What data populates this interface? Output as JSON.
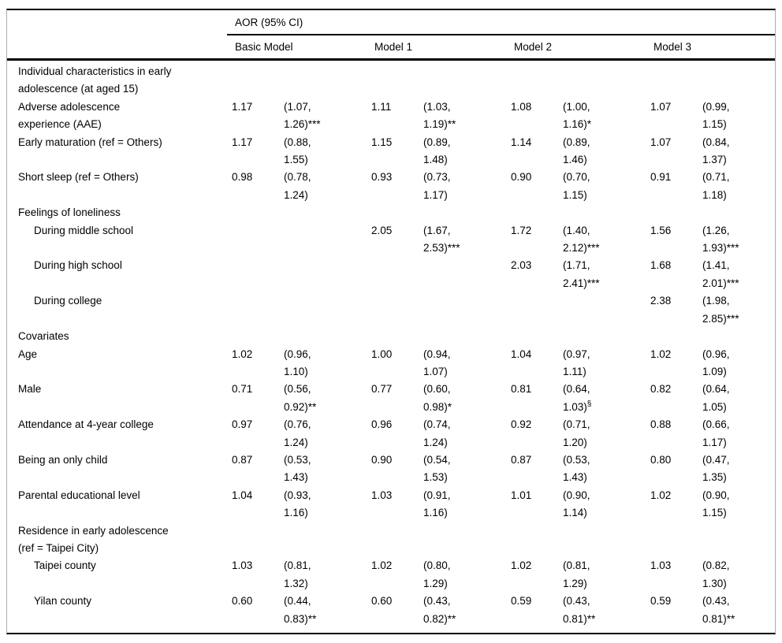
{
  "table": {
    "spanner_header": "AOR (95% CI)",
    "column_groups": [
      "Basic Model",
      "Model 1",
      "Model 2",
      "Model 3"
    ],
    "rows": [
      {
        "kind": "section",
        "indent": 0,
        "label_lines": [
          "Individual characteristics in early",
          "adolescence (at aged 15)"
        ]
      },
      {
        "kind": "data",
        "indent": 0,
        "label_lines": [
          "Adverse adolescence",
          "experience (AAE)"
        ],
        "cells": [
          {
            "aor": "1.17",
            "ci": "(1.07, 1.26)",
            "sig": "***"
          },
          {
            "aor": "1.11",
            "ci": "(1.03, 1.19)",
            "sig": "**"
          },
          {
            "aor": "1.08",
            "ci": "(1.00, 1.16)",
            "sig": "*"
          },
          {
            "aor": "1.07",
            "ci": "(0.99, 1.15)",
            "sig": ""
          }
        ]
      },
      {
        "kind": "data",
        "indent": 0,
        "label_lines": [
          "Early maturation (ref = Others)"
        ],
        "cells": [
          {
            "aor": "1.17",
            "ci": "(0.88, 1.55)",
            "sig": ""
          },
          {
            "aor": "1.15",
            "ci": "(0.89, 1.48)",
            "sig": ""
          },
          {
            "aor": "1.14",
            "ci": "(0.89, 1.46)",
            "sig": ""
          },
          {
            "aor": "1.07",
            "ci": "(0.84, 1.37)",
            "sig": ""
          }
        ]
      },
      {
        "kind": "data",
        "indent": 0,
        "label_lines": [
          "Short sleep (ref = Others)"
        ],
        "cells": [
          {
            "aor": "0.98",
            "ci": "(0.78, 1.24)",
            "sig": ""
          },
          {
            "aor": "0.93",
            "ci": "(0.73, 1.17)",
            "sig": ""
          },
          {
            "aor": "0.90",
            "ci": "(0.70, 1.15)",
            "sig": ""
          },
          {
            "aor": "0.91",
            "ci": "(0.71, 1.18)",
            "sig": ""
          }
        ]
      },
      {
        "kind": "section",
        "indent": 0,
        "label_lines": [
          "Feelings of loneliness"
        ]
      },
      {
        "kind": "data",
        "indent": 1,
        "label_lines": [
          "During middle school"
        ],
        "cells": [
          null,
          {
            "aor": "2.05",
            "ci": "(1.67, 2.53)",
            "sig": "***"
          },
          {
            "aor": "1.72",
            "ci": "(1.40, 2.12)",
            "sig": "***"
          },
          {
            "aor": "1.56",
            "ci": "(1.26, 1.93)",
            "sig": "***"
          }
        ]
      },
      {
        "kind": "data",
        "indent": 1,
        "label_lines": [
          "During high school"
        ],
        "cells": [
          null,
          null,
          {
            "aor": "2.03",
            "ci": "(1.71, 2.41)",
            "sig": "***"
          },
          {
            "aor": "1.68",
            "ci": "(1.41, 2.01)",
            "sig": "***"
          }
        ]
      },
      {
        "kind": "data",
        "indent": 1,
        "label_lines": [
          "During college"
        ],
        "cells": [
          null,
          null,
          null,
          {
            "aor": "2.38",
            "ci": "(1.98, 2.85)",
            "sig": "***"
          }
        ]
      },
      {
        "kind": "section",
        "indent": 0,
        "label_lines": [
          "Covariates"
        ]
      },
      {
        "kind": "data",
        "indent": 0,
        "label_lines": [
          "Age"
        ],
        "cells": [
          {
            "aor": "1.02",
            "ci": "(0.96, 1.10)",
            "sig": ""
          },
          {
            "aor": "1.00",
            "ci": "(0.94, 1.07)",
            "sig": ""
          },
          {
            "aor": "1.04",
            "ci": "(0.97, 1.11)",
            "sig": ""
          },
          {
            "aor": "1.02",
            "ci": "(0.96, 1.09)",
            "sig": ""
          }
        ]
      },
      {
        "kind": "data",
        "indent": 0,
        "label_lines": [
          "Male"
        ],
        "cells": [
          {
            "aor": "0.71",
            "ci": "(0.56, 0.92)",
            "sig": "**"
          },
          {
            "aor": "0.77",
            "ci": "(0.60, 0.98)",
            "sig": "*"
          },
          {
            "aor": "0.81",
            "ci": "(0.64, 1.03)",
            "sig": "§"
          },
          {
            "aor": "0.82",
            "ci": "(0.64, 1.05)",
            "sig": ""
          }
        ]
      },
      {
        "kind": "data",
        "indent": 0,
        "label_lines": [
          "Attendance at 4-year college"
        ],
        "cells": [
          {
            "aor": "0.97",
            "ci": "(0.76, 1.24)",
            "sig": ""
          },
          {
            "aor": "0.96",
            "ci": "(0.74, 1.24)",
            "sig": ""
          },
          {
            "aor": "0.92",
            "ci": "(0.71, 1.20)",
            "sig": ""
          },
          {
            "aor": "0.88",
            "ci": "(0.66, 1.17)",
            "sig": ""
          }
        ]
      },
      {
        "kind": "data",
        "indent": 0,
        "label_lines": [
          "Being an only child"
        ],
        "cells": [
          {
            "aor": "0.87",
            "ci": "(0.53, 1.43)",
            "sig": ""
          },
          {
            "aor": "0.90",
            "ci": "(0.54, 1.53)",
            "sig": ""
          },
          {
            "aor": "0.87",
            "ci": "(0.53, 1.43)",
            "sig": ""
          },
          {
            "aor": "0.80",
            "ci": "(0.47, 1.35)",
            "sig": ""
          }
        ]
      },
      {
        "kind": "data",
        "indent": 0,
        "label_lines": [
          "Parental educational level"
        ],
        "cells": [
          {
            "aor": "1.04",
            "ci": "(0.93, 1.16)",
            "sig": ""
          },
          {
            "aor": "1.03",
            "ci": "(0.91, 1.16)",
            "sig": ""
          },
          {
            "aor": "1.01",
            "ci": "(0.90, 1.14)",
            "sig": ""
          },
          {
            "aor": "1.02",
            "ci": "(0.90, 1.15)",
            "sig": ""
          }
        ]
      },
      {
        "kind": "section",
        "indent": 0,
        "label_lines": [
          "Residence in early adolescence",
          "(ref = Taipei City)"
        ]
      },
      {
        "kind": "data",
        "indent": 1,
        "label_lines": [
          "Taipei county"
        ],
        "cells": [
          {
            "aor": "1.03",
            "ci": "(0.81, 1.32)",
            "sig": ""
          },
          {
            "aor": "1.02",
            "ci": "(0.80, 1.29)",
            "sig": ""
          },
          {
            "aor": "1.02",
            "ci": "(0.81, 1.29)",
            "sig": ""
          },
          {
            "aor": "1.03",
            "ci": "(0.82, 1.30)",
            "sig": ""
          }
        ]
      },
      {
        "kind": "data",
        "indent": 1,
        "label_lines": [
          "Yilan county"
        ],
        "cells": [
          {
            "aor": "0.60",
            "ci": "(0.44, 0.83)",
            "sig": "**"
          },
          {
            "aor": "0.60",
            "ci": "(0.43, 0.82)",
            "sig": "**"
          },
          {
            "aor": "0.59",
            "ci": "(0.43, 0.81)",
            "sig": "**"
          },
          {
            "aor": "0.59",
            "ci": "(0.43, 0.81)",
            "sig": "**"
          }
        ]
      }
    ]
  }
}
